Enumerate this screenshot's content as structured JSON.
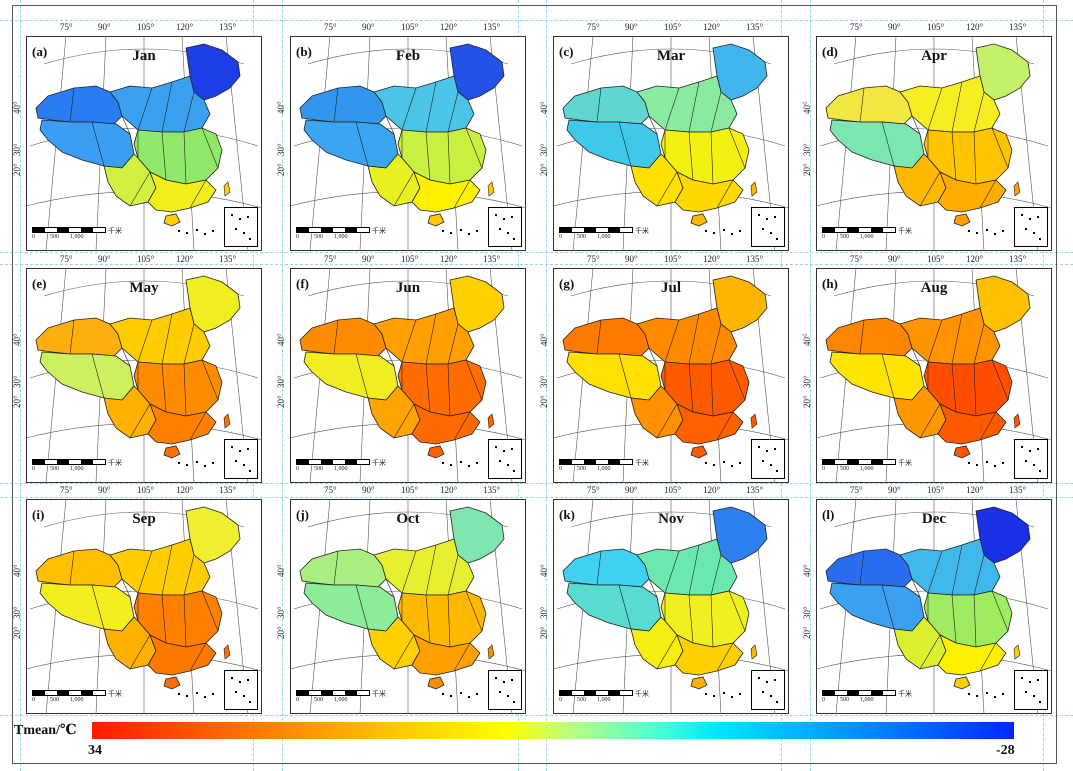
{
  "lon_labels": [
    "75°",
    "90°",
    "105°",
    "120°",
    "135°"
  ],
  "lat_labels": [
    "40°",
    "30°",
    "20°"
  ],
  "scale_labels": [
    "0",
    "500",
    "1,000",
    "千米"
  ],
  "panels": [
    {
      "tag": "(a)",
      "month": "Jan",
      "colors": {
        "nw": "#2a7cf2",
        "tibet": "#3b9ef4",
        "ne": "#1d3de6",
        "north": "#3aa0f0",
        "center": "#8fe86a",
        "south": "#f2ee1a",
        "southwest": "#d2f040",
        "hainan": "#ffd000"
      }
    },
    {
      "tag": "(b)",
      "month": "Feb",
      "colors": {
        "nw": "#3296ee",
        "tibet": "#3aa5f0",
        "ne": "#2452e8",
        "north": "#4cc4e8",
        "center": "#c8f040",
        "south": "#fff000",
        "southwest": "#e8f020",
        "hainan": "#ffc800"
      }
    },
    {
      "tag": "(c)",
      "month": "Mar",
      "colors": {
        "nw": "#5fd6d0",
        "tibet": "#3ec8ea",
        "ne": "#40b6ec",
        "north": "#8aeaa0",
        "center": "#f2f010",
        "south": "#ffd800",
        "southwest": "#ffe000",
        "hainan": "#ffb800"
      }
    },
    {
      "tag": "(d)",
      "month": "Apr",
      "colors": {
        "nw": "#f2e640",
        "tibet": "#7ce6b0",
        "ne": "#c4f06a",
        "north": "#f6ee20",
        "center": "#ffc400",
        "south": "#ffae00",
        "southwest": "#ffb800",
        "hainan": "#ff9e00"
      }
    },
    {
      "tag": "(e)",
      "month": "May",
      "colors": {
        "nw": "#ffae10",
        "tibet": "#cdf060",
        "ne": "#f0ee20",
        "north": "#ffcc00",
        "center": "#ff8c00",
        "south": "#ff8000",
        "southwest": "#ffb000",
        "hainan": "#ff7000"
      }
    },
    {
      "tag": "(f)",
      "month": "Jun",
      "colors": {
        "nw": "#ff8c00",
        "tibet": "#f0ee20",
        "ne": "#ffd000",
        "north": "#ffa000",
        "center": "#ff6c00",
        "south": "#ff6a00",
        "southwest": "#ffa400",
        "hainan": "#ff6000"
      }
    },
    {
      "tag": "(g)",
      "month": "Jul",
      "colors": {
        "nw": "#ff7a00",
        "tibet": "#ffe000",
        "ne": "#ffb400",
        "north": "#ff8a00",
        "center": "#ff5a00",
        "south": "#ff6000",
        "southwest": "#ff9000",
        "hainan": "#ff5800"
      }
    },
    {
      "tag": "(h)",
      "month": "Aug",
      "colors": {
        "nw": "#ff8400",
        "tibet": "#ffe400",
        "ne": "#ffc000",
        "north": "#ff9400",
        "center": "#ff4e00",
        "south": "#ff5a00",
        "southwest": "#ff9800",
        "hainan": "#ff5400"
      }
    },
    {
      "tag": "(i)",
      "month": "Sep",
      "colors": {
        "nw": "#ffbe00",
        "tibet": "#f4ee20",
        "ne": "#f0ee30",
        "north": "#ffcc00",
        "center": "#ff8000",
        "south": "#ff7800",
        "southwest": "#ffb000",
        "hainan": "#ff6c00"
      }
    },
    {
      "tag": "(j)",
      "month": "Oct",
      "colors": {
        "nw": "#a8ee80",
        "tibet": "#8cec98",
        "ne": "#80e6b0",
        "north": "#e6f030",
        "center": "#ffb800",
        "south": "#ffa000",
        "southwest": "#ffd000",
        "hainan": "#ff8c00"
      }
    },
    {
      "tag": "(k)",
      "month": "Nov",
      "colors": {
        "nw": "#40d0f0",
        "tibet": "#58dcd0",
        "ne": "#2c80f0",
        "north": "#6ae8b0",
        "center": "#f0f020",
        "south": "#ffd000",
        "southwest": "#f6ee10",
        "hainan": "#ffb000"
      }
    },
    {
      "tag": "(l)",
      "month": "Dec",
      "colors": {
        "nw": "#2a6cf0",
        "tibet": "#3aa0f2",
        "ne": "#1a30e4",
        "north": "#3fb8ec",
        "center": "#a0ec60",
        "south": "#fff000",
        "southwest": "#dcf030",
        "hainan": "#ffd000"
      }
    }
  ],
  "legend": {
    "title": "Tmean/℃",
    "min_label": "34",
    "max_label": "-28",
    "min_value": 34,
    "max_value": -28
  }
}
